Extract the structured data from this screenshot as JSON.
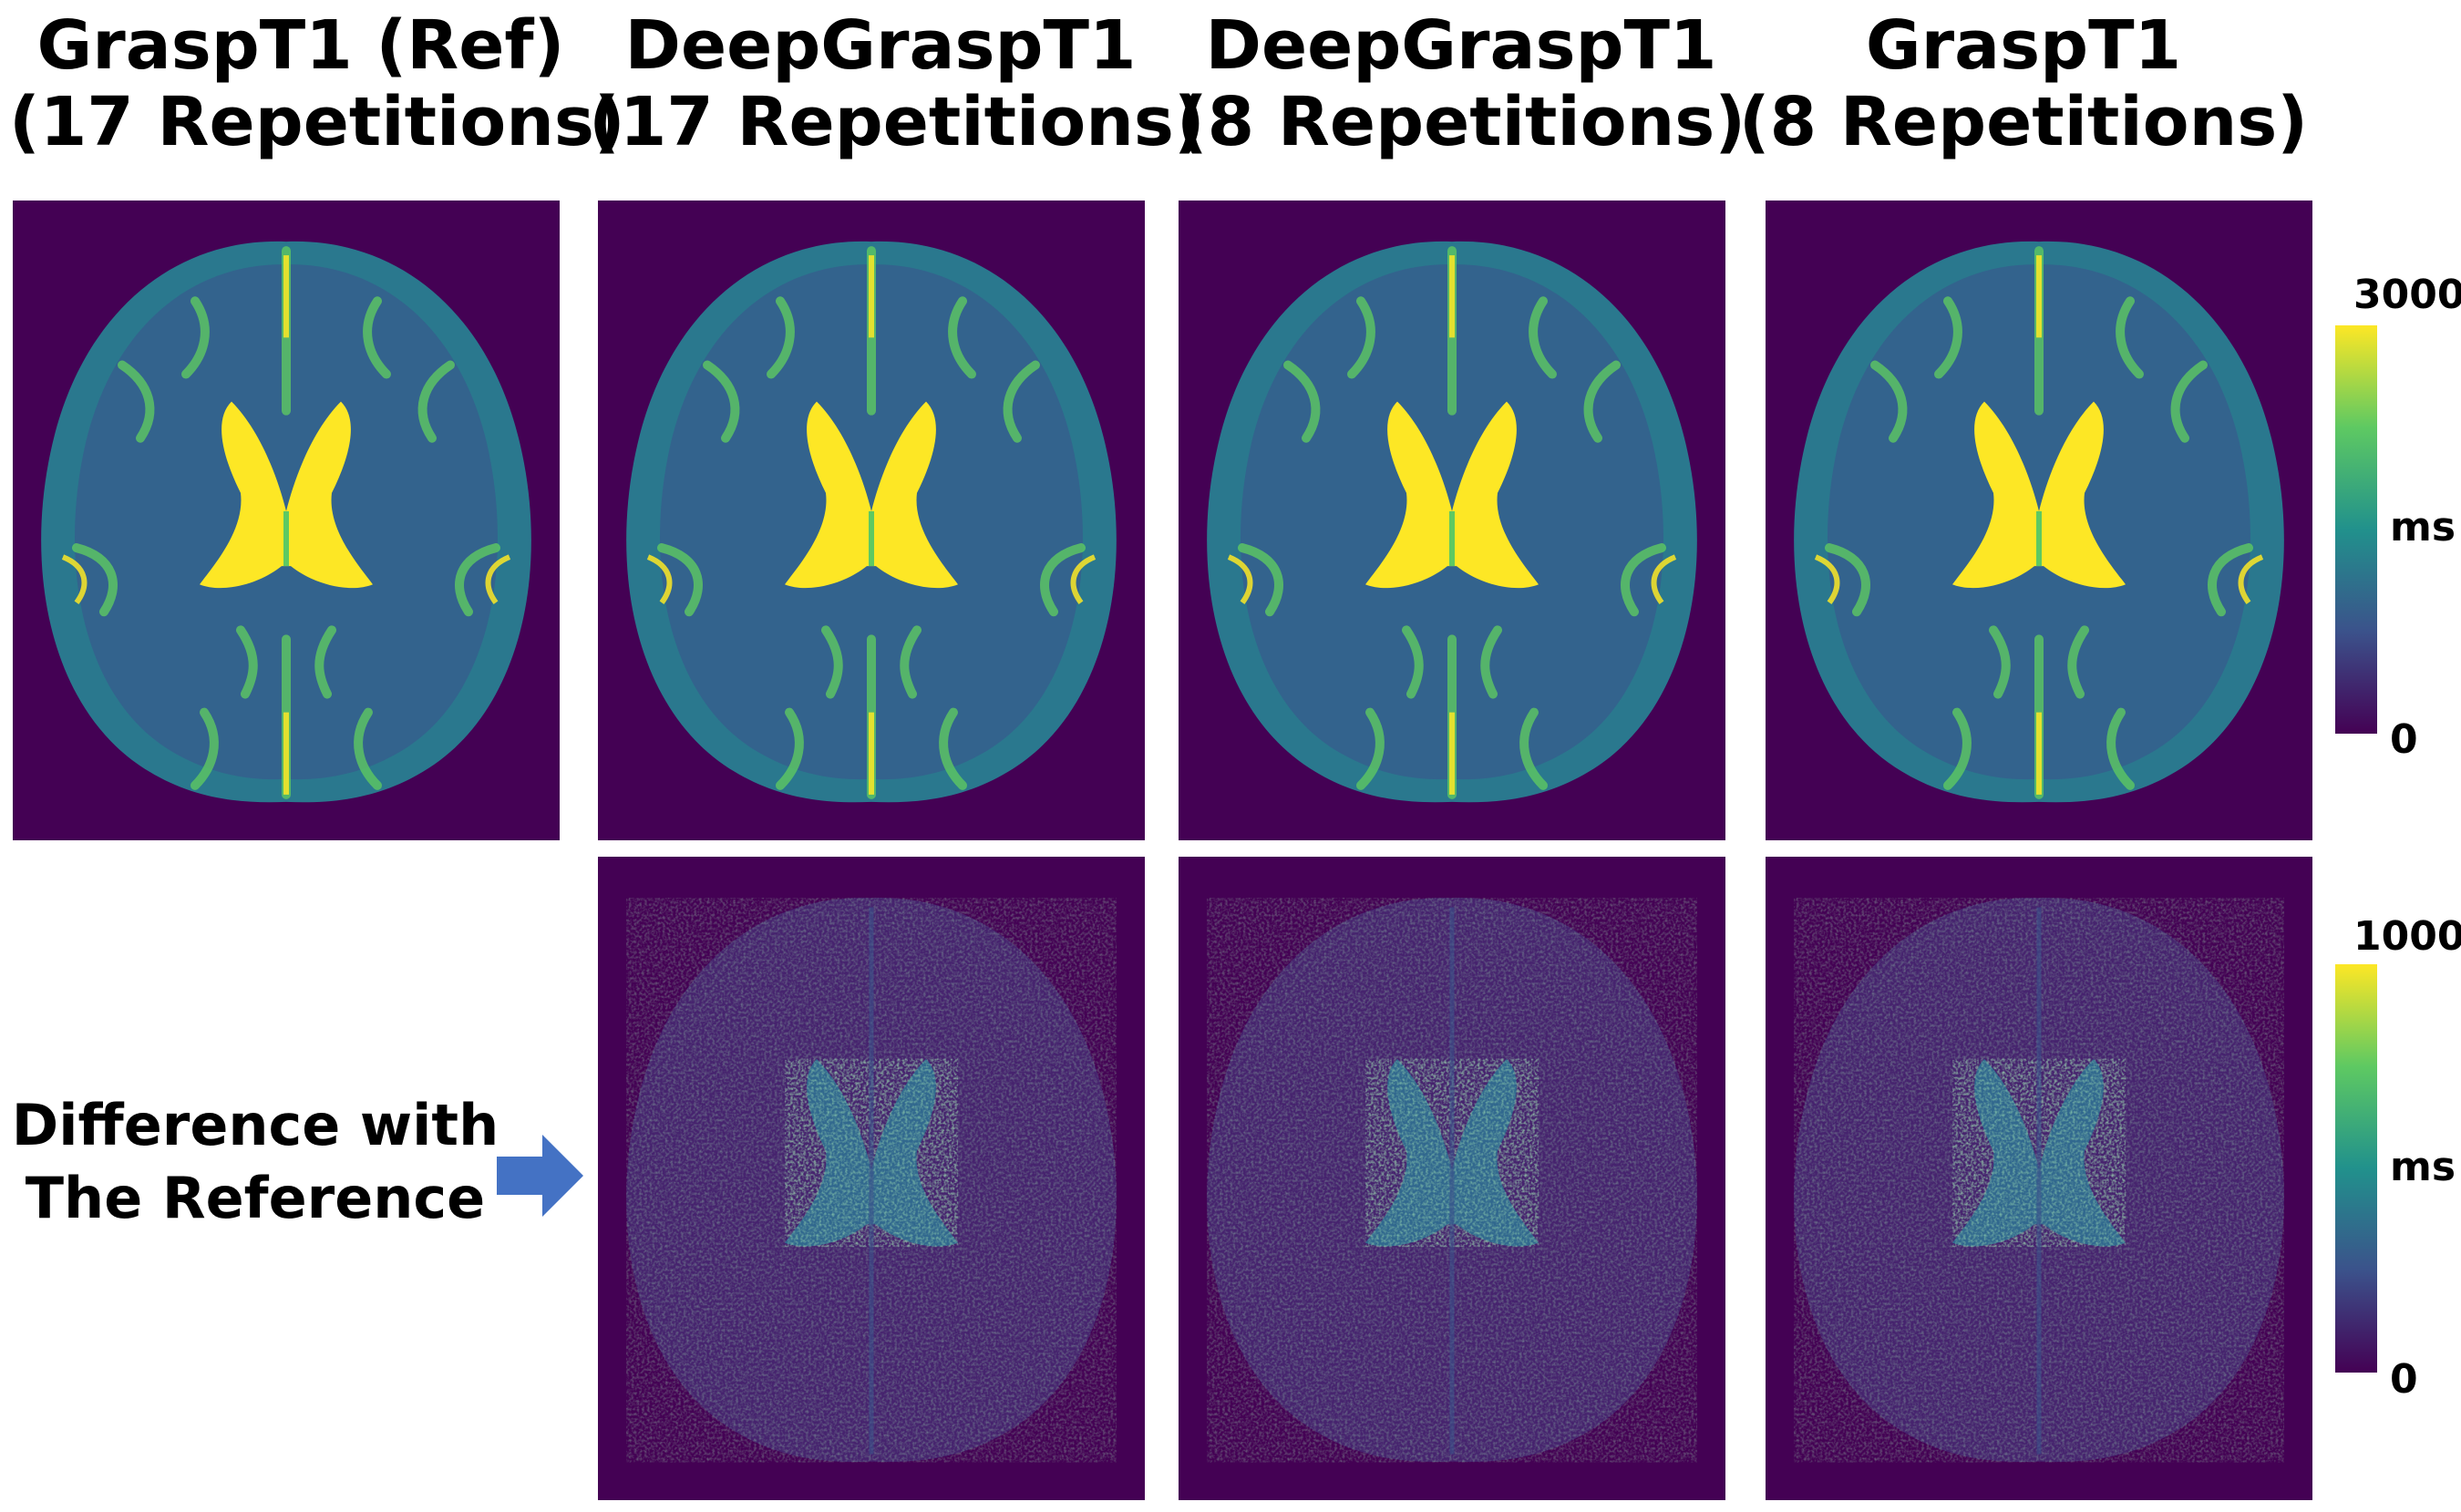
{
  "columns": [
    {
      "line1": "GraspT1 (Ref)",
      "line2": "(17 Repetitions)"
    },
    {
      "line1": "DeepGraspT1",
      "line2": "(17 Repetitions)"
    },
    {
      "line1": "DeepGraspT1",
      "line2": "(8 Repetitions)"
    },
    {
      "line1": "GraspT1",
      "line2": "(8 Repetitions)"
    }
  ],
  "row_label": {
    "line1": "Difference with",
    "line2": "The Reference"
  },
  "colorbar_t1": {
    "max": "3000",
    "unit": "ms",
    "min": "0"
  },
  "colorbar_diff": {
    "max": "1000",
    "unit": "ms",
    "min": "0"
  },
  "colors": {
    "viridis_0": "#440154",
    "viridis_25": "#3b528b",
    "viridis_50": "#21918c",
    "viridis_75": "#5ec962",
    "viridis_100": "#fde725",
    "arrow": "#4472c4"
  },
  "icons": {
    "arrow": "right-arrow-icon"
  }
}
